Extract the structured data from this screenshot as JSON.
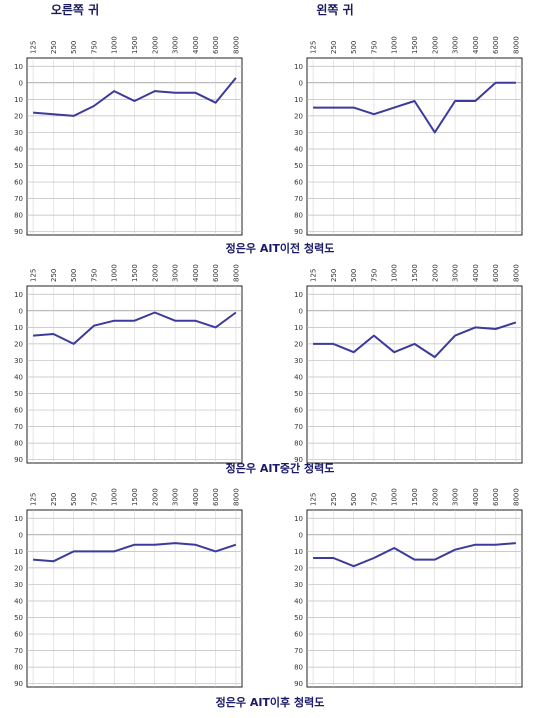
{
  "headers": [
    "오른쪽 귀",
    "왼쪽 귀"
  ],
  "captions": [
    "정은우 AIT이전 청력도",
    "정은우 AIT중간 청력도",
    "정은우 AIT이후 청력도"
  ],
  "chart_data": [
    {
      "type": "line",
      "categories": [
        "125",
        "250",
        "500",
        "750",
        "1000",
        "1500",
        "2000",
        "3000",
        "4000",
        "6000",
        "8000"
      ],
      "values": [
        18,
        19,
        20,
        14,
        5,
        11,
        5,
        6,
        6,
        12,
        -3
      ],
      "color": "#3b3b9c",
      "ylim": [
        -15,
        92
      ],
      "inverted": true,
      "grid": true,
      "yticks": [
        {
          "value": -10,
          "label": "10"
        },
        0,
        10,
        20,
        30,
        40,
        50,
        60,
        70,
        80,
        90
      ]
    },
    {
      "type": "line",
      "categories": [
        "125",
        "250",
        "500",
        "750",
        "1000",
        "1500",
        "2000",
        "3000",
        "4000",
        "6000",
        "8000"
      ],
      "values": [
        15,
        15,
        15,
        19,
        15,
        11,
        30,
        11,
        11,
        0,
        0
      ],
      "color": "#3b3b9c",
      "ylim": [
        -15,
        92
      ],
      "inverted": true,
      "grid": true,
      "yticks": [
        {
          "value": -10,
          "label": "10"
        },
        0,
        10,
        20,
        30,
        40,
        50,
        60,
        70,
        80,
        90
      ]
    },
    {
      "type": "line",
      "categories": [
        "125",
        "250",
        "500",
        "750",
        "1000",
        "1500",
        "2000",
        "3000",
        "4000",
        "6000",
        "8000"
      ],
      "values": [
        15,
        14,
        20,
        9,
        6,
        6,
        1,
        6,
        6,
        10,
        1
      ],
      "color": "#3b3b9c",
      "ylim": [
        -15,
        92
      ],
      "inverted": true,
      "grid": true,
      "yticks": [
        {
          "value": -10,
          "label": "10"
        },
        0,
        10,
        20,
        30,
        40,
        50,
        60,
        70,
        80,
        90
      ]
    },
    {
      "type": "line",
      "categories": [
        "125",
        "250",
        "500",
        "750",
        "1000",
        "1500",
        "2000",
        "3000",
        "4000",
        "6000",
        "8000"
      ],
      "values": [
        20,
        20,
        25,
        15,
        25,
        20,
        28,
        15,
        10,
        11,
        7
      ],
      "color": "#3b3b9c",
      "ylim": [
        -15,
        92
      ],
      "inverted": true,
      "grid": true,
      "yticks": [
        {
          "value": -10,
          "label": "10"
        },
        0,
        10,
        20,
        30,
        40,
        50,
        60,
        70,
        80,
        90
      ]
    },
    {
      "type": "line",
      "categories": [
        "125",
        "250",
        "500",
        "750",
        "1000",
        "1500",
        "2000",
        "3000",
        "4000",
        "6000",
        "8000"
      ],
      "values": [
        15,
        16,
        10,
        10,
        10,
        6,
        6,
        5,
        6,
        10,
        6
      ],
      "color": "#3b3b9c",
      "ylim": [
        -15,
        92
      ],
      "inverted": true,
      "grid": true,
      "yticks": [
        {
          "value": -10,
          "label": "10"
        },
        0,
        10,
        20,
        30,
        40,
        50,
        60,
        70,
        80,
        90
      ]
    },
    {
      "type": "line",
      "categories": [
        "125",
        "250",
        "500",
        "750",
        "1000",
        "1500",
        "2000",
        "3000",
        "4000",
        "6000",
        "8000"
      ],
      "values": [
        14,
        14,
        19,
        14,
        8,
        15,
        15,
        9,
        6,
        6,
        5
      ],
      "color": "#3b3b9c",
      "ylim": [
        -15,
        92
      ],
      "inverted": true,
      "grid": true,
      "yticks": [
        {
          "value": -10,
          "label": "10"
        },
        0,
        10,
        20,
        30,
        40,
        50,
        60,
        70,
        80,
        90
      ]
    }
  ]
}
